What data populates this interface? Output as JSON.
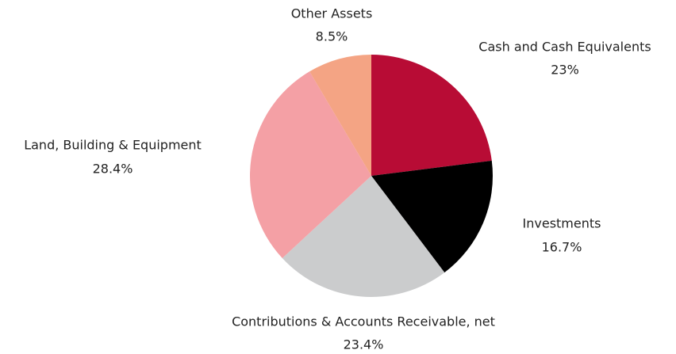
{
  "chart_data": {
    "type": "pie",
    "categories": [
      "Cash and Cash Equivalents",
      "Investments",
      "Contributions & Accounts Receivable, net",
      "Land, Building & Equipment",
      "Other Assets"
    ],
    "values": [
      23,
      16.7,
      23.4,
      28.4,
      8.5
    ],
    "value_labels": [
      "23%",
      "16.7%",
      "23.4%",
      "28.4%",
      "8.5%"
    ],
    "colors": [
      "#b80c35",
      "#000000",
      "#cbcccd",
      "#f4a0a5",
      "#f4a484"
    ]
  }
}
